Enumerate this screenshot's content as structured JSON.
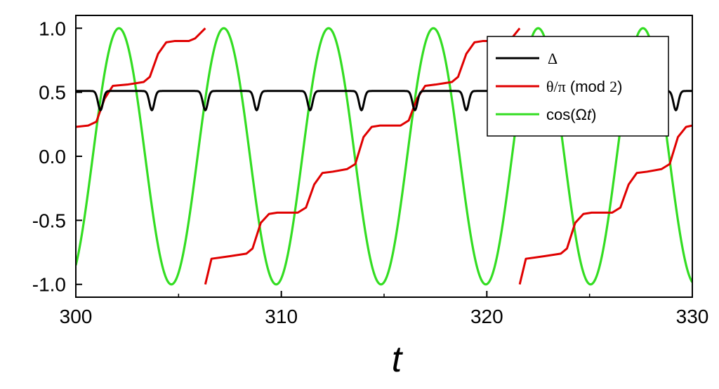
{
  "chart_data": {
    "type": "line",
    "xlabel": "t",
    "ylabel": "",
    "xlim": [
      300,
      330
    ],
    "ylim": [
      -1.1,
      1.1
    ],
    "x_ticks": [
      300,
      310,
      320,
      330
    ],
    "x_tick_labels": [
      "300",
      "310",
      "320",
      "330"
    ],
    "y_ticks": [
      1.0,
      0.5,
      0.0,
      -0.5,
      -1.0
    ],
    "y_tick_labels": [
      "1.0",
      "0.5",
      "0.0",
      "-0.5",
      "-1.0"
    ],
    "legend_position": "top-right",
    "legend": {
      "delta": "Δ",
      "theta_part1": "θ/π",
      "theta_part2": " (mod ",
      "theta_part3": "2",
      "theta_part4": ")",
      "cos_part1": "cos(Ω",
      "cos_part2": "t",
      "cos_part3": ")"
    },
    "series": [
      {
        "name": "Δ",
        "color": "#000000",
        "function": "oscillation between about 0.51 and dips to 0.36",
        "baseline": 0.51,
        "dip_min": 0.36,
        "dip_times": [
          301.2,
          303.7,
          306.3,
          308.8,
          311.4,
          313.9,
          316.5,
          319.0,
          321.6,
          324.1,
          326.7,
          329.2
        ]
      },
      {
        "name": "θ/π (mod 2)",
        "color": "#e00000",
        "segments": [
          {
            "x": [
              300.0,
              300.6,
              301.0,
              301.4,
              301.8,
              302.5,
              303.3,
              303.6,
              304.0,
              304.4,
              304.8,
              305.5,
              305.8,
              306.3
            ],
            "y": [
              0.23,
              0.24,
              0.27,
              0.45,
              0.55,
              0.56,
              0.58,
              0.62,
              0.8,
              0.89,
              0.9,
              0.9,
              0.92,
              1.0
            ]
          },
          {
            "x": [
              306.3,
              306.6,
              307.5,
              308.3,
              308.6,
              309.0,
              309.4,
              309.8,
              310.8,
              311.2,
              311.6,
              312.0,
              312.5,
              313.2,
              313.6,
              314.0,
              314.4,
              314.8,
              315.8,
              316.2,
              316.6,
              317.0,
              317.5,
              318.3,
              318.6,
              319.0,
              319.4,
              319.8,
              320.8,
              321.2,
              321.6
            ],
            "y": [
              -1.0,
              -0.8,
              -0.78,
              -0.76,
              -0.72,
              -0.52,
              -0.45,
              -0.44,
              -0.44,
              -0.4,
              -0.22,
              -0.13,
              -0.12,
              -0.1,
              -0.06,
              0.15,
              0.23,
              0.24,
              0.24,
              0.28,
              0.45,
              0.55,
              0.56,
              0.58,
              0.62,
              0.8,
              0.89,
              0.9,
              0.9,
              0.92,
              1.0
            ]
          },
          {
            "x": [
              321.6,
              321.9,
              322.8,
              323.6,
              323.9,
              324.3,
              324.7,
              325.1,
              326.1,
              326.5,
              326.9,
              327.3,
              327.8,
              328.5,
              328.9,
              329.3,
              329.7,
              330.0
            ],
            "y": [
              -1.0,
              -0.8,
              -0.78,
              -0.76,
              -0.72,
              -0.52,
              -0.45,
              -0.44,
              -0.44,
              -0.4,
              -0.22,
              -0.13,
              -0.12,
              -0.1,
              -0.06,
              0.15,
              0.23,
              0.24
            ]
          }
        ]
      },
      {
        "name": "cos(Ωt)",
        "color": "#33dd22",
        "function": "cos",
        "amplitude": 1.0,
        "period": 5.1,
        "peak_at": 302.1
      }
    ]
  }
}
